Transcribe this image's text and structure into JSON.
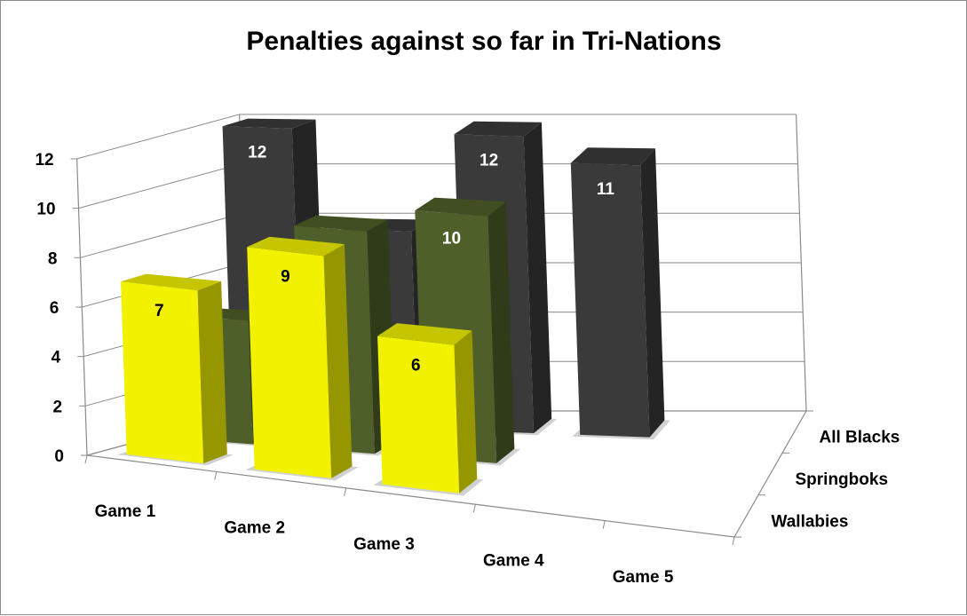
{
  "chart_data": {
    "type": "bar",
    "title": "Penalties against so far in Tri-Nations",
    "categories": [
      "Game 1",
      "Game 2",
      "Game 3",
      "Game 4",
      "Game 5"
    ],
    "series": [
      {
        "name": "All Blacks",
        "values": [
          12,
          8,
          12,
          11,
          null
        ],
        "color": "#3a3a3a"
      },
      {
        "name": "Springboks",
        "values": [
          5,
          9,
          10,
          null,
          null
        ],
        "color": "#4e5f2a"
      },
      {
        "name": "Wallabies",
        "values": [
          7,
          9,
          6,
          null,
          null
        ],
        "color": "#f2f200"
      }
    ],
    "ylim": [
      0,
      12
    ],
    "yticks": [
      0,
      2,
      4,
      6,
      8,
      10,
      12
    ],
    "grid": true,
    "projection": "3d-column"
  }
}
